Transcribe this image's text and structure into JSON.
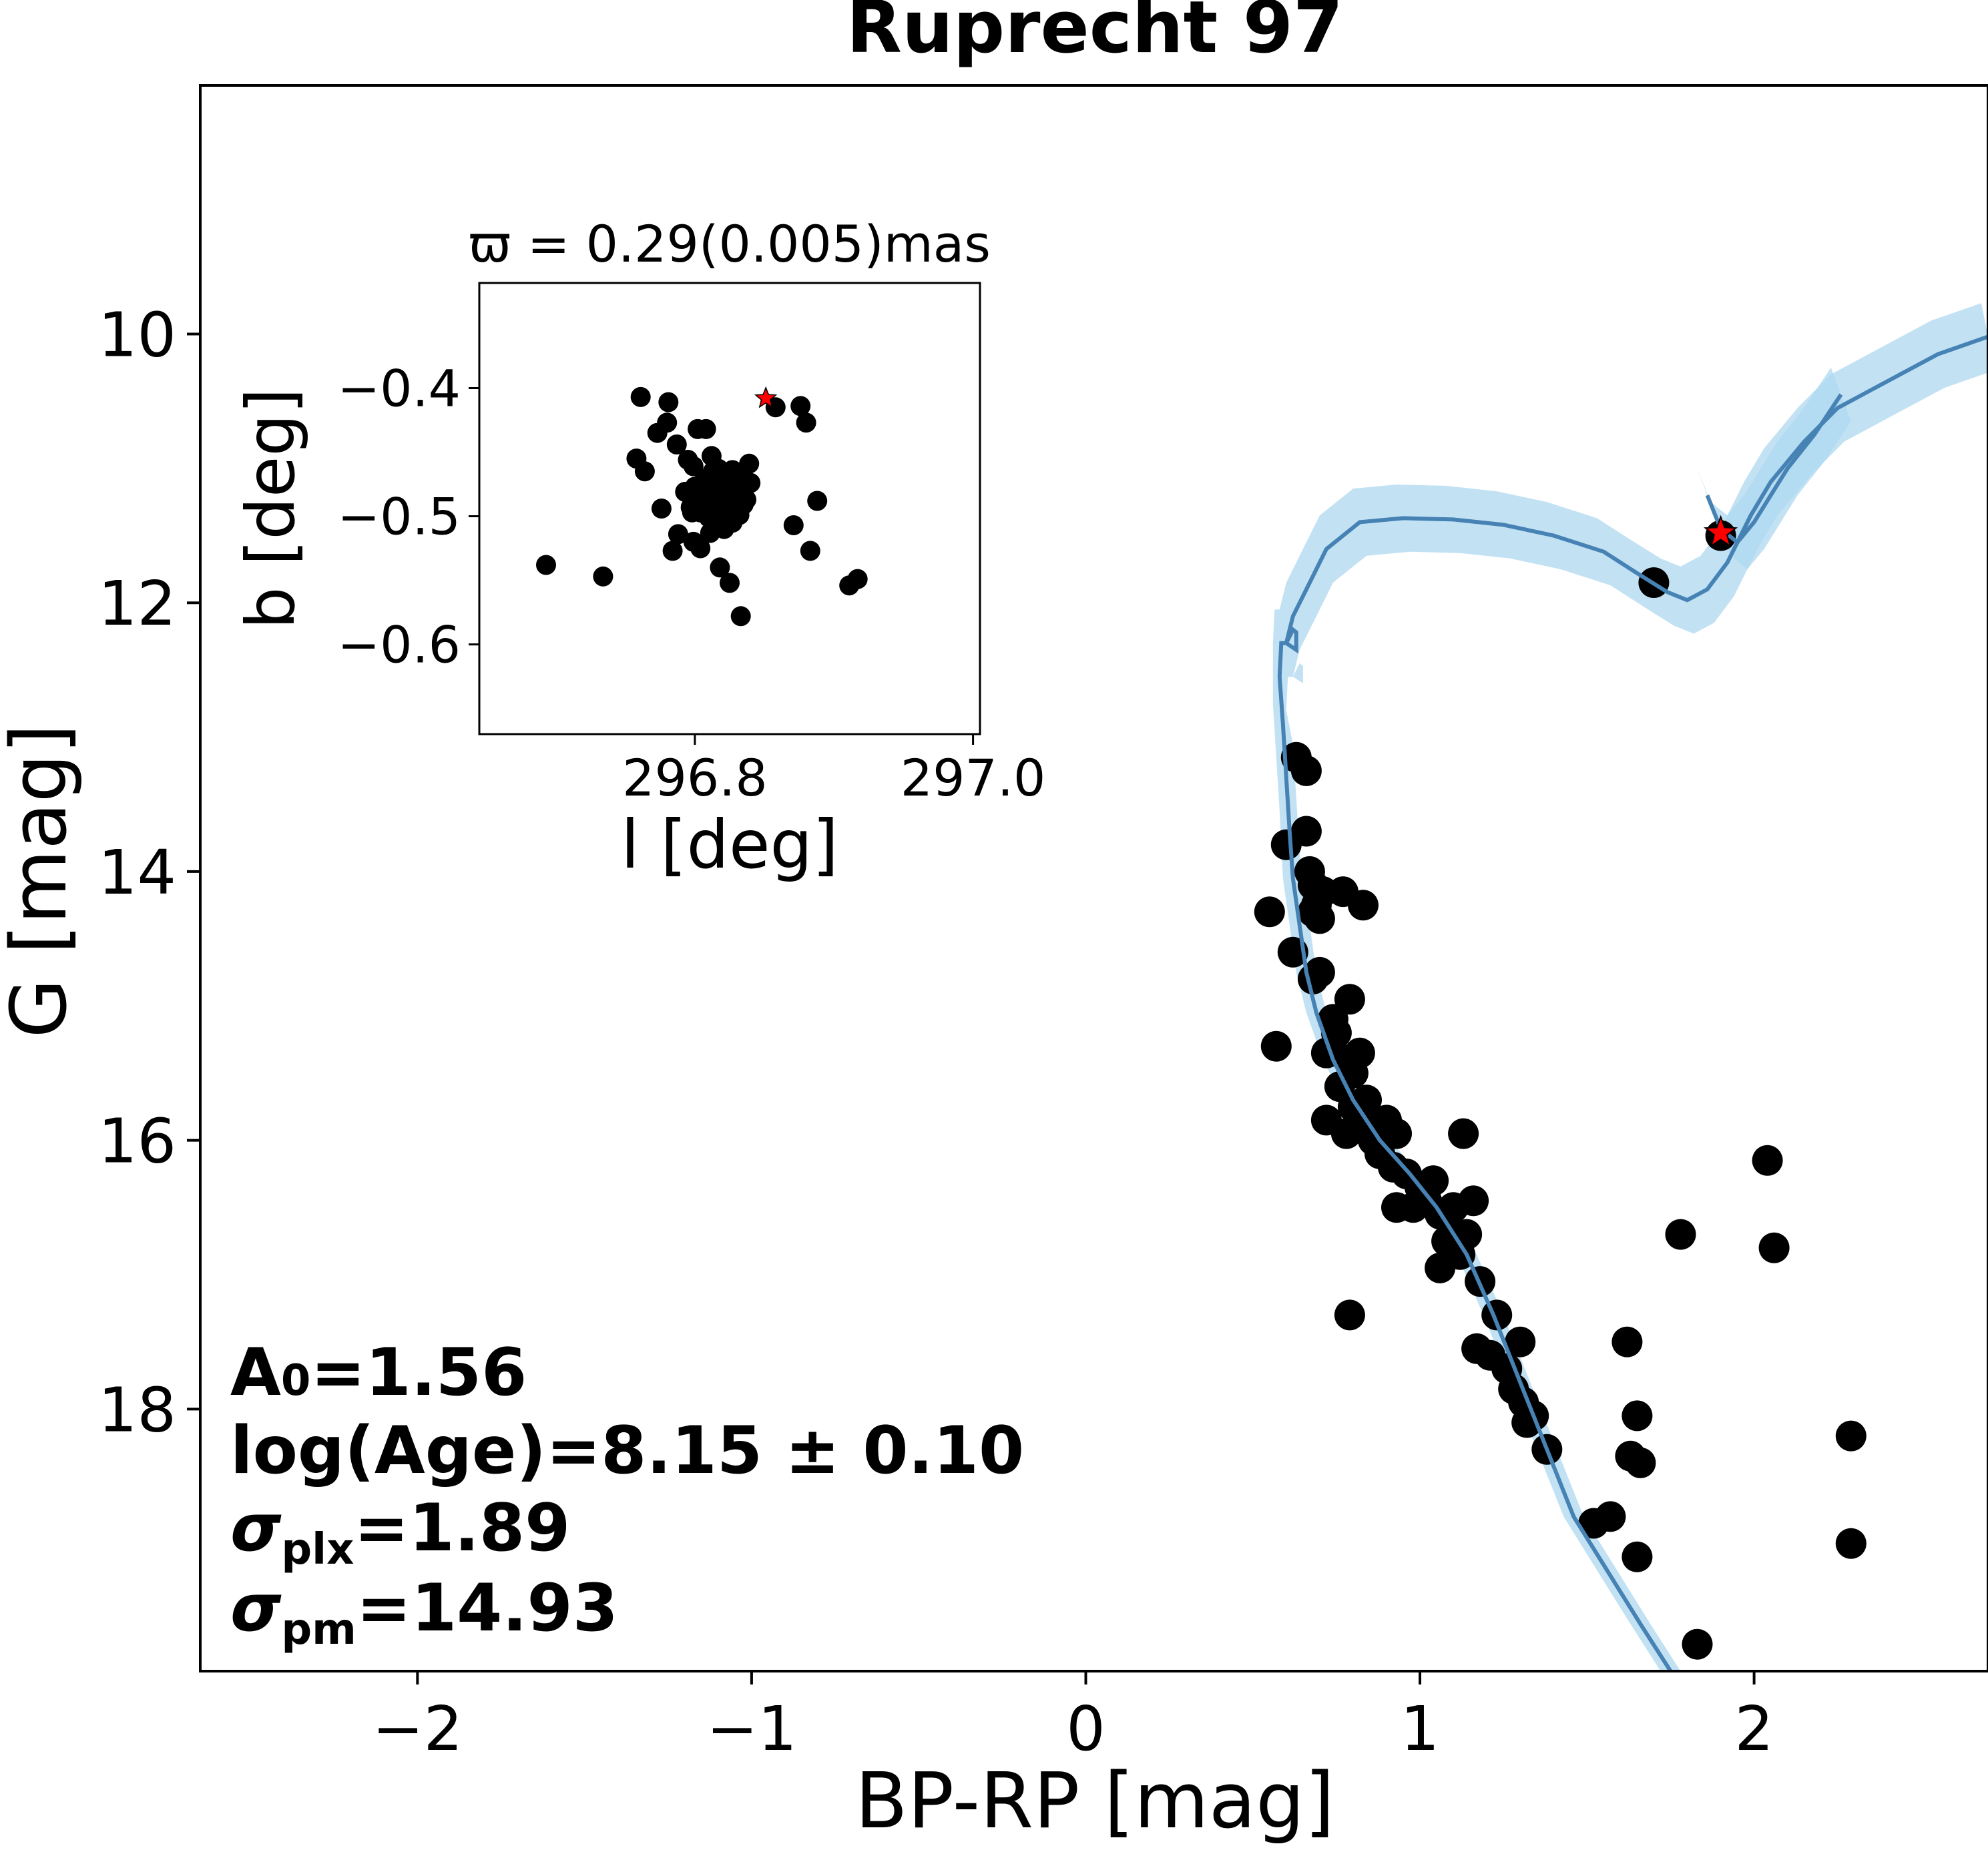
{
  "chart_data": [
    {
      "type": "scatter",
      "title": "Ruprecht 97",
      "xlabel": "BP-RP [mag]",
      "ylabel": "G [mag]",
      "xlim": [
        -2.65,
        2.7
      ],
      "ylim": [
        19.95,
        8.15
      ],
      "y_inverted": true,
      "grid": false,
      "xticks": [
        -2,
        -1,
        0,
        1,
        2
      ],
      "xtick_labels": [
        "−2",
        "−1",
        "0",
        "1",
        "2"
      ],
      "yticks": [
        10,
        12,
        14,
        16,
        18
      ],
      "ytick_labels": [
        "10",
        "12",
        "14",
        "16",
        "18"
      ],
      "annotations": {
        "a0": {
          "main": "A",
          "sub": "0",
          "rest": "=1.56"
        },
        "age": {
          "text": "log(Age)=8.15 ± 0.10"
        },
        "plx": {
          "main": "σ",
          "sub": "plx",
          "rest": "=1.89"
        },
        "pm": {
          "main": "σ",
          "sub": "pm",
          "rest": "=14.93"
        }
      },
      "colors": {
        "points": "#000000",
        "isochrone": "#4682b4",
        "band": "#add8f0",
        "highlight": "#ff0000"
      },
      "isochrone": {
        "x": [
          1.75,
          1.66,
          1.56,
          1.46,
          1.38,
          1.3,
          1.22,
          1.14,
          1.05,
          0.97,
          0.88,
          0.8,
          0.74,
          0.69,
          0.66,
          0.64,
          0.62,
          0.61,
          0.6,
          0.59,
          0.58,
          0.585,
          0.6,
          0.61,
          0.62,
          0.63,
          0.63,
          0.6,
          0.62,
          0.66,
          0.72,
          0.82,
          0.95,
          1.1,
          1.25,
          1.4,
          1.55,
          1.65,
          1.74,
          1.8,
          1.86,
          1.92,
          1.96,
          1.99,
          2.05,
          2.15,
          2.25,
          2.4,
          2.55,
          2.7
        ],
        "y": [
          19.95,
          19.6,
          19.2,
          18.8,
          18.3,
          17.8,
          17.3,
          16.85,
          16.5,
          16.25,
          16.0,
          15.7,
          15.4,
          15.05,
          14.75,
          14.4,
          14.05,
          13.7,
          13.3,
          12.9,
          12.55,
          12.3,
          12.3,
          12.25,
          12.2,
          12.22,
          12.35,
          12.3,
          12.1,
          11.9,
          11.6,
          11.4,
          11.37,
          11.38,
          11.42,
          11.5,
          11.62,
          11.78,
          11.92,
          11.98,
          11.9,
          11.7,
          11.5,
          11.35,
          11.1,
          10.8,
          10.55,
          10.35,
          10.15,
          10.02
        ]
      },
      "isochrone_branch": {
        "x": [
          1.86,
          1.9,
          1.95,
          2.0,
          2.05,
          2.1,
          2.18,
          2.26
        ],
        "y": [
          11.2,
          11.45,
          11.55,
          11.4,
          11.2,
          11.0,
          10.75,
          10.45
        ]
      },
      "points": {
        "x": [
          0.68,
          0.63,
          0.66,
          0.6,
          0.66,
          0.67,
          0.71,
          0.7,
          0.68,
          0.55,
          0.69,
          0.77,
          0.83,
          0.62,
          0.68,
          0.7,
          0.79,
          0.74,
          0.57,
          0.72,
          0.75,
          0.79,
          0.8,
          0.82,
          0.72,
          0.76,
          0.8,
          0.84,
          0.88,
          0.78,
          0.82,
          0.86,
          0.9,
          0.93,
          0.88,
          0.92,
          0.96,
          1.0,
          1.04,
          0.98,
          1.02,
          1.06,
          1.1,
          1.08,
          0.93,
          1.13,
          1.16,
          1.1,
          1.12,
          1.14,
          1.18,
          1.06,
          1.23,
          1.17,
          1.21,
          1.3,
          1.26,
          1.31,
          1.28,
          1.34,
          1.32,
          1.38,
          1.52,
          1.57,
          1.62,
          1.63,
          1.65,
          1.66,
          1.65,
          0.79,
          1.78,
          1.83,
          2.04,
          2.06,
          2.29,
          2.29,
          1.7,
          1.9
        ],
        "y": [
          14.3,
          13.15,
          13.25,
          13.8,
          13.7,
          14.0,
          14.15,
          14.35,
          14.1,
          14.3,
          14.25,
          14.15,
          14.25,
          14.6,
          14.8,
          14.75,
          14.95,
          15.1,
          15.3,
          15.35,
          15.2,
          15.4,
          15.5,
          15.35,
          15.85,
          15.6,
          15.75,
          15.7,
          15.9,
          15.95,
          15.9,
          16.0,
          15.85,
          15.95,
          16.1,
          16.2,
          16.25,
          16.35,
          16.3,
          16.5,
          16.45,
          16.55,
          16.5,
          16.75,
          16.5,
          15.95,
          16.45,
          16.7,
          16.85,
          16.7,
          17.05,
          16.95,
          17.3,
          17.55,
          17.6,
          17.5,
          17.7,
          17.95,
          17.85,
          18.05,
          18.1,
          18.3,
          18.85,
          18.8,
          17.5,
          18.35,
          18.05,
          18.4,
          19.1,
          17.3,
          16.7,
          19.75,
          16.15,
          16.8,
          18.2,
          19.0,
          11.85,
          11.5
        ]
      },
      "highlight_star": {
        "x": 1.9,
        "y": 11.48
      }
    },
    {
      "type": "scatter",
      "title": "ϖ = 0.29(0.005)mas",
      "xlabel": "l [deg]",
      "ylabel": "b [deg]",
      "xlim": [
        296.645,
        297.005
      ],
      "ylim": [
        -0.67,
        -0.318
      ],
      "grid": false,
      "xticks": [
        296.8,
        297.0
      ],
      "xtick_labels": [
        "296.8",
        "297.0"
      ],
      "yticks": [
        -0.4,
        -0.5,
        -0.6
      ],
      "ytick_labels": [
        "−0.4",
        "−0.5",
        "−0.6"
      ],
      "points": {
        "l": [
          296.764,
          296.776,
          296.784,
          296.788,
          296.825,
          296.833,
          296.818,
          296.773,
          296.78,
          296.758,
          296.787,
          296.802,
          296.808,
          296.804,
          296.795,
          296.812,
          296.826,
          296.839,
          296.781,
          296.761,
          296.837,
          296.888,
          296.871,
          296.88,
          296.876,
          296.883,
          296.858,
          296.911,
          296.917,
          296.693,
          296.734,
          296.827,
          296.834,
          296.799,
          296.811,
          296.821,
          296.797,
          296.817,
          296.815,
          296.808,
          296.82,
          296.826,
          296.8,
          296.813,
          296.827,
          296.83,
          296.833,
          296.817,
          296.795,
          296.8,
          296.806,
          296.812,
          296.818,
          296.824,
          296.829,
          296.835,
          296.84,
          296.798,
          296.804,
          296.81,
          296.815,
          296.821,
          296.826,
          296.832,
          296.837,
          296.801,
          296.807,
          296.812,
          296.818,
          296.823,
          296.829,
          296.834,
          296.81,
          296.815,
          296.821,
          296.826,
          296.806,
          296.812,
          296.817,
          296.823,
          296.828,
          296.834,
          296.793,
          296.81,
          296.825,
          296.816,
          296.83,
          296.799,
          296.83
        ],
        "b": [
          -0.465,
          -0.494,
          -0.527,
          -0.514,
          -0.552,
          -0.578,
          -0.54,
          -0.435,
          -0.427,
          -0.455,
          -0.444,
          -0.432,
          -0.432,
          -0.525,
          -0.456,
          -0.453,
          -0.47,
          -0.459,
          -0.411,
          -0.407,
          -0.487,
          -0.488,
          -0.507,
          -0.427,
          -0.414,
          -0.527,
          -0.415,
          -0.554,
          -0.549,
          -0.538,
          -0.547,
          -0.505,
          -0.488,
          -0.52,
          -0.513,
          -0.51,
          -0.493,
          -0.499,
          -0.487,
          -0.476,
          -0.472,
          -0.48,
          -0.477,
          -0.465,
          -0.464,
          -0.467,
          -0.476,
          -0.463,
          -0.482,
          -0.483,
          -0.485,
          -0.488,
          -0.49,
          -0.49,
          -0.494,
          -0.491,
          -0.474,
          -0.497,
          -0.497,
          -0.501,
          -0.503,
          -0.504,
          -0.499,
          -0.499,
          -0.476,
          -0.477,
          -0.471,
          -0.472,
          -0.474,
          -0.468,
          -0.469,
          -0.47,
          -0.48,
          -0.484,
          -0.485,
          -0.482,
          -0.493,
          -0.495,
          -0.494,
          -0.496,
          -0.485,
          -0.488,
          -0.481,
          -0.478,
          -0.486,
          -0.495,
          -0.478,
          -0.461,
          -0.498
        ],
        "cluster_size": 89
      },
      "highlight_star": {
        "l": 296.851,
        "b": -0.408
      }
    }
  ]
}
